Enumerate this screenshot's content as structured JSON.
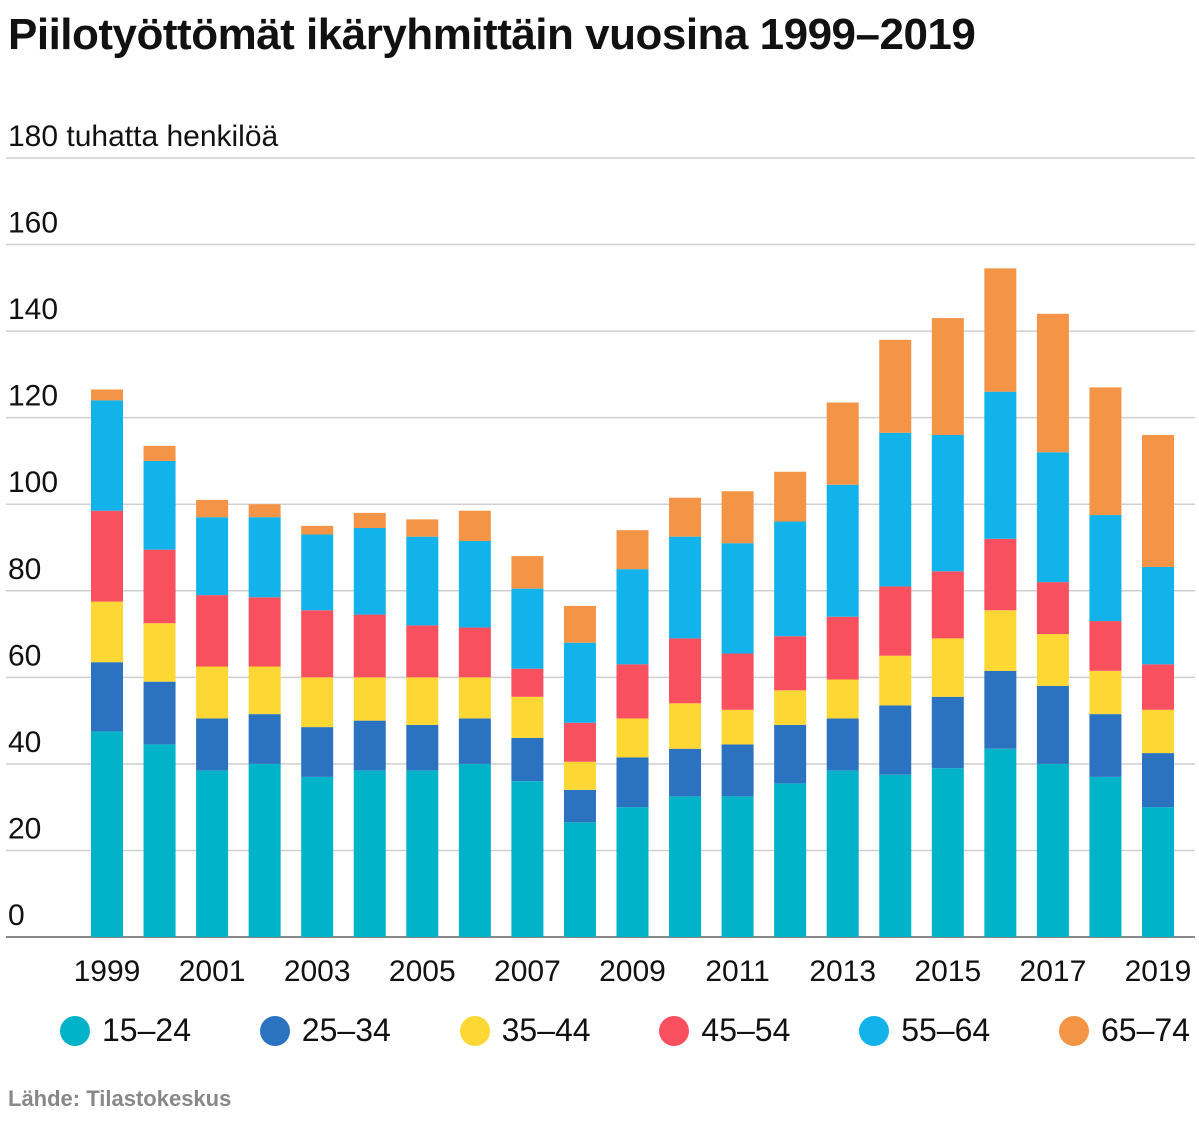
{
  "title": "Piilotyöttömät ikäryhmittäin vuosina 1999–2019",
  "source": "Lähde: Tilastokeskus",
  "chart_data": {
    "type": "bar",
    "stacked": true,
    "title": "Piilotyöttömät ikäryhmittäin vuosina 1999–2019",
    "ylabel": "tuhatta henkilöä",
    "ylim": [
      0,
      180
    ],
    "yticks": [
      0,
      20,
      40,
      60,
      80,
      100,
      120,
      140,
      160,
      180
    ],
    "ytick_labels": [
      "0",
      "20",
      "40",
      "60",
      "80",
      "100",
      "120",
      "140",
      "160",
      "180 tuhatta henkilöä"
    ],
    "grid": true,
    "legend_position": "bottom",
    "categories": [
      "1999",
      "2000",
      "2001",
      "2002",
      "2003",
      "2004",
      "2005",
      "2006",
      "2007",
      "2008",
      "2009",
      "2010",
      "2011",
      "2012",
      "2013",
      "2014",
      "2015",
      "2016",
      "2017",
      "2018",
      "2019"
    ],
    "xtick_labels": [
      "1999",
      "",
      "2001",
      "",
      "2003",
      "",
      "2005",
      "",
      "2007",
      "",
      "2009",
      "",
      "2011",
      "",
      "2013",
      "",
      "2015",
      "",
      "2017",
      "",
      "2019"
    ],
    "series": [
      {
        "name": "15–24",
        "color": "#00b3c8",
        "values": [
          47.5,
          44.5,
          38.5,
          40,
          37,
          38.5,
          38.5,
          40,
          36,
          26.5,
          30,
          32.5,
          32.5,
          35.5,
          38.5,
          37.5,
          39,
          43.5,
          40,
          37,
          30
        ]
      },
      {
        "name": "25–34",
        "color": "#2b72c0",
        "values": [
          16,
          14.5,
          12,
          11.5,
          11.5,
          11.5,
          10.5,
          10.5,
          10,
          7.5,
          11.5,
          11,
          12,
          13.5,
          12,
          16,
          16.5,
          18,
          18,
          14.5,
          12.5
        ]
      },
      {
        "name": "35–44",
        "color": "#fdd835",
        "values": [
          14,
          13.5,
          12,
          11,
          11.5,
          10,
          11,
          9.5,
          9.5,
          6.5,
          9,
          10.5,
          8,
          8,
          9,
          11.5,
          13.5,
          14,
          12,
          10,
          10
        ]
      },
      {
        "name": "45–54",
        "color": "#f8505f",
        "values": [
          21,
          17,
          16.5,
          16,
          15.5,
          14.5,
          12,
          11.5,
          6.5,
          9,
          12.5,
          15,
          13,
          12.5,
          14.5,
          16,
          15.5,
          16.5,
          12,
          11.5,
          10.5
        ]
      },
      {
        "name": "55–64",
        "color": "#12b2ea",
        "values": [
          25.5,
          20.5,
          18,
          18.5,
          17.5,
          20,
          20.5,
          20,
          18.5,
          18.5,
          22,
          23.5,
          25.5,
          26.5,
          30.5,
          35.5,
          31.5,
          34,
          30,
          24.5,
          22.5
        ]
      },
      {
        "name": "65–74",
        "color": "#f49447",
        "values": [
          2.5,
          3.5,
          4,
          3,
          2,
          3.5,
          4,
          7,
          7.5,
          8.5,
          9,
          9,
          12,
          11.5,
          19,
          21.5,
          27,
          28.5,
          32,
          29.5,
          30.5
        ]
      }
    ]
  }
}
